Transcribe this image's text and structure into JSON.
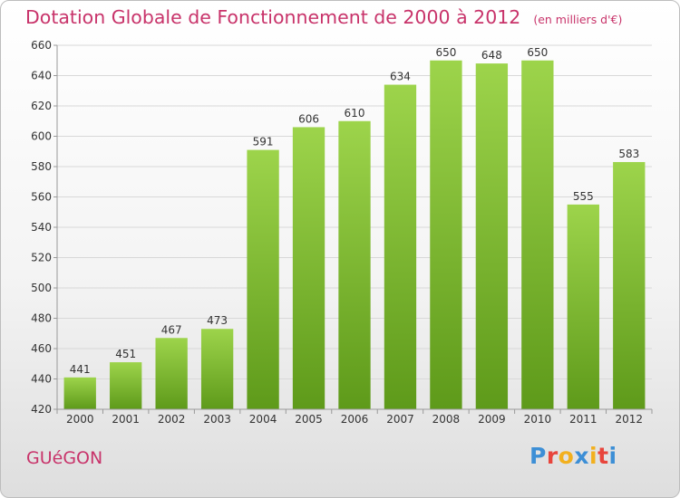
{
  "header": {
    "title": "Dotation Globale de Fonctionnement de 2000 à 2012",
    "unit": "(en milliers d'€)"
  },
  "footer": {
    "commune": "GUéGON",
    "logo": {
      "letters": [
        "P",
        "r",
        "o",
        "x",
        "i",
        "t",
        "i"
      ],
      "colors": [
        "#3d8fd6",
        "#e8453c",
        "#f2b01e",
        "#3d8fd6",
        "#f2b01e",
        "#e8453c",
        "#3d8fd6"
      ]
    }
  },
  "chart_data": {
    "type": "bar",
    "categories": [
      "2000",
      "2001",
      "2002",
      "2003",
      "2004",
      "2005",
      "2006",
      "2007",
      "2008",
      "2009",
      "2010",
      "2011",
      "2012"
    ],
    "values": [
      441,
      451,
      467,
      473,
      591,
      606,
      610,
      634,
      650,
      648,
      650,
      555,
      583
    ],
    "ylim": [
      420,
      660
    ],
    "yticks": [
      420,
      440,
      460,
      480,
      500,
      520,
      540,
      560,
      580,
      600,
      620,
      640,
      660
    ],
    "grid": true,
    "colors": {
      "bar_top": "#9dd44b",
      "bar_bottom": "#5e9a1a",
      "grid": "#d8d8d8",
      "axis": "#999999"
    }
  }
}
